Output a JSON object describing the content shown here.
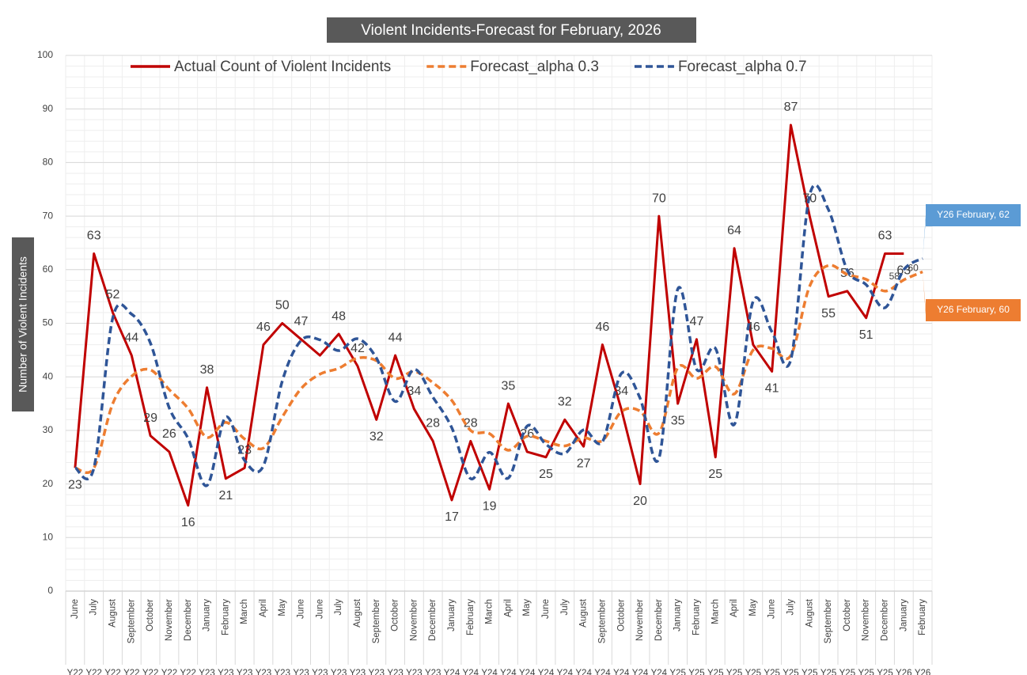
{
  "chart_data": {
    "type": "line",
    "title": "Violent Incidents-Forecast for February, 2026",
    "y_label": "Number of Violent Incidents",
    "categories": [
      "June",
      "July",
      "August",
      "September",
      "October",
      "November",
      "December",
      "January",
      "February",
      "March",
      "April",
      "May",
      "June",
      "June",
      "July",
      "August",
      "September",
      "October",
      "November",
      "December",
      "January",
      "February",
      "March",
      "April",
      "May",
      "June",
      "July",
      "August",
      "September",
      "October",
      "November",
      "December",
      "January",
      "February",
      "March",
      "April",
      "May",
      "June",
      "July",
      "August",
      "September",
      "October",
      "November",
      "December",
      "January",
      "February"
    ],
    "years": [
      "Y22",
      "Y22",
      "Y22",
      "Y22",
      "Y22",
      "Y22",
      "Y22",
      "Y23",
      "Y23",
      "Y23",
      "Y23",
      "Y23",
      "Y23",
      "Y23",
      "Y23",
      "Y23",
      "Y23",
      "Y23",
      "Y23",
      "Y23",
      "Y24",
      "Y24",
      "Y24",
      "Y24",
      "Y24",
      "Y24",
      "Y24",
      "Y24",
      "Y24",
      "Y24",
      "Y24",
      "Y24",
      "Y25",
      "Y25",
      "Y25",
      "Y25",
      "Y25",
      "Y25",
      "Y25",
      "Y25",
      "Y25",
      "Y25",
      "Y25",
      "Y25",
      "Y26",
      "Y26"
    ],
    "series": [
      {
        "name": "Actual Count of Violent Incidents",
        "color": "#c00000",
        "line_style": "solid",
        "smooth": false,
        "values": [
          23,
          63,
          52,
          44,
          29,
          26,
          16,
          38,
          21,
          23,
          46,
          50,
          47,
          44,
          48,
          42,
          32,
          44,
          34,
          28,
          17,
          28,
          19,
          35,
          26,
          25,
          32,
          27,
          46,
          34,
          20,
          70,
          35,
          47,
          25,
          64,
          46,
          41,
          87,
          70,
          55,
          56,
          51,
          63,
          63,
          null
        ],
        "value_labels": [
          "23",
          "63",
          "52",
          "44",
          "29",
          "26",
          "16",
          "38",
          "21",
          "23",
          "46",
          "50",
          "47",
          null,
          "48",
          "42",
          "32",
          "44",
          "34",
          "28",
          "17",
          "28",
          "19",
          "35",
          "26",
          "25",
          "32",
          "27",
          "46",
          "34",
          "20",
          "70",
          "35",
          "47",
          "25",
          "64",
          "46",
          "41",
          "87",
          "70",
          "55",
          "56",
          "51",
          "63",
          "63",
          null
        ]
      },
      {
        "name": "Forecast_alpha 0.3",
        "color": "#ed7d31",
        "line_style": "dashed",
        "smooth": true,
        "values": [
          23,
          23,
          35,
          40.1,
          41.3,
          37.6,
          34.1,
          28.7,
          31.5,
          28.4,
          26.7,
          32.5,
          37.8,
          40.5,
          41.6,
          43.5,
          43,
          39.7,
          41,
          38.9,
          35.6,
          30,
          29.4,
          26.3,
          28.9,
          28,
          27.1,
          28.6,
          28.1,
          33.5,
          33.6,
          29.5,
          41.7,
          39.7,
          41.9,
          36.8,
          45,
          45.3,
          44,
          56.9,
          60.8,
          59.1,
          58.2,
          56,
          58.1,
          59.6
        ],
        "value_labels": [
          null,
          null,
          null,
          null,
          null,
          null,
          null,
          null,
          null,
          null,
          null,
          null,
          null,
          null,
          null,
          null,
          null,
          null,
          null,
          null,
          null,
          null,
          null,
          null,
          null,
          null,
          null,
          null,
          null,
          null,
          null,
          null,
          null,
          null,
          null,
          null,
          null,
          null,
          null,
          null,
          null,
          null,
          null,
          null,
          "58",
          "60"
        ]
      },
      {
        "name": "Forecast_alpha 0.7",
        "color": "#2f5597",
        "line_style": "dashed",
        "smooth": true,
        "values": [
          23,
          23,
          51,
          51.7,
          46.3,
          34.2,
          28.5,
          19.7,
          32.5,
          24.4,
          23.4,
          39.2,
          46.8,
          46.9,
          44.9,
          47.1,
          43.5,
          35.4,
          41.4,
          36.2,
          30.5,
          21,
          25.9,
          21.1,
          30.8,
          27.4,
          25.7,
          30.1,
          27.9,
          40.6,
          36,
          24.8,
          56.4,
          41.4,
          45.3,
          31.1,
          54.1,
          48.4,
          43.2,
          73.9,
          71.2,
          59.9,
          57.2,
          52.9,
          60,
          62.1
        ]
      }
    ],
    "annotations": [
      {
        "text": "Y26 February, 62",
        "series": 2,
        "index": 45,
        "color": "#5b9bd5"
      },
      {
        "text": "Y26 February, 60",
        "series": 1,
        "index": 45,
        "color": "#ed7d31"
      }
    ],
    "ylim": [
      0,
      100
    ],
    "yticks": [
      0,
      10,
      20,
      30,
      40,
      50,
      60,
      70,
      80,
      90,
      100
    ],
    "grid": true,
    "minor_grid": true,
    "legend": "top"
  }
}
